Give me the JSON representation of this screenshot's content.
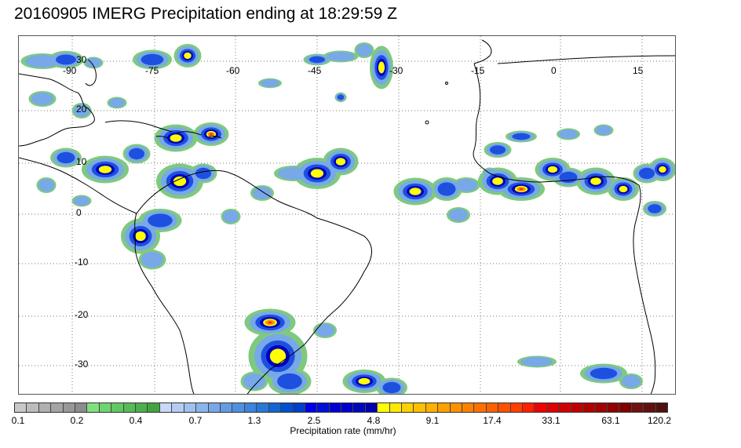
{
  "title": "20160905 IMERG Precipitation ending at 18:29:59 Z",
  "map": {
    "lon_labels": [
      "-90",
      "-75",
      "-60",
      "-45",
      "-30",
      "-15",
      "0",
      "15"
    ],
    "lat_labels": [
      "30",
      "20",
      "10",
      "0",
      "-10",
      "-20",
      "-30"
    ],
    "grid": "dotted",
    "coastline_color": "#000000"
  },
  "colorbar": {
    "label": "Precipitation rate (mm/hr)",
    "tick_labels": [
      "0.1",
      "0.2",
      "0.4",
      "0.7",
      "1.3",
      "2.5",
      "4.8",
      "9.1",
      "17.4",
      "33.1",
      "63.1",
      "120.2"
    ],
    "colors": [
      "#c8c8c8",
      "#bcbcbc",
      "#b0b0b0",
      "#a4a4a4",
      "#989898",
      "#8c8c8c",
      "#7fe07f",
      "#6fd46f",
      "#62c862",
      "#56bc56",
      "#4bb04b",
      "#40a440",
      "#c8d8f8",
      "#b4ccf4",
      "#a0c0f0",
      "#8cb4ec",
      "#78a8e8",
      "#649ce4",
      "#5090e0",
      "#3c84dc",
      "#2878d8",
      "#1464d4",
      "#0050d0",
      "#0040c8",
      "#0000e8",
      "#0010d8",
      "#0000d0",
      "#0000c8",
      "#0008bc",
      "#0000b0",
      "#ffff00",
      "#ffe800",
      "#ffd000",
      "#ffc000",
      "#ffb000",
      "#ffa000",
      "#ff9000",
      "#ff8000",
      "#ff7000",
      "#ff6000",
      "#ff5000",
      "#ff4000",
      "#ff2000",
      "#f00000",
      "#e00000",
      "#d00000",
      "#c00000",
      "#b00000",
      "#a00000",
      "#900000",
      "#800000",
      "#701010",
      "#601010",
      "#501010"
    ],
    "precip_palette": {
      "light": "#7fc97f",
      "sky": "#78a8e8",
      "blue": "#1e50e0",
      "navy": "#0000c0",
      "yellow": "#ffff00",
      "orange": "#ff9000",
      "red": "#ff3000"
    }
  }
}
